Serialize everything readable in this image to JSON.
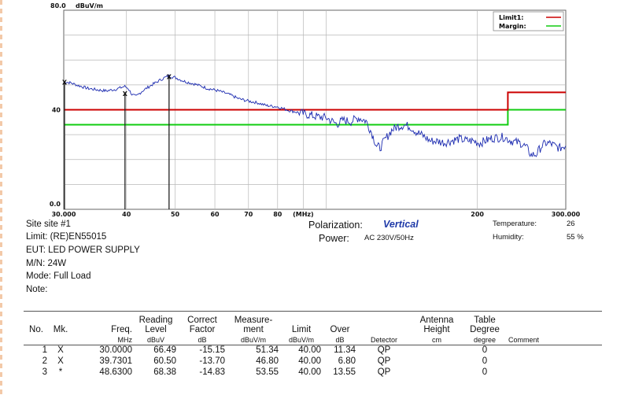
{
  "chart_data": {
    "type": "line",
    "y_top_label": "80.0",
    "y_unit_label": "dBuV/m",
    "y_tick_labels": [
      "40",
      "0.0"
    ],
    "ylim": [
      0,
      80
    ],
    "xlim": [
      30,
      300
    ],
    "x_scale": "log",
    "x_tick_labels": [
      {
        "v": 30,
        "t": "30.000"
      },
      {
        "v": 40,
        "t": "40"
      },
      {
        "v": 50,
        "t": "50"
      },
      {
        "v": 60,
        "t": "60"
      },
      {
        "v": 70,
        "t": "70"
      },
      {
        "v": 80,
        "t": "80"
      },
      {
        "v": 90,
        "t": "(MHz)"
      },
      {
        "v": 200,
        "t": "200"
      },
      {
        "v": 300,
        "t": "300.000"
      }
    ],
    "legend": {
      "placement": "top-right",
      "items": [
        {
          "label": "Limit1:",
          "color": "#cc0000"
        },
        {
          "label": "Margin:",
          "color": "#11cc11"
        }
      ]
    },
    "limit_line": {
      "color": "#cc0000",
      "points": [
        [
          30,
          40
        ],
        [
          230,
          40
        ],
        [
          230,
          47
        ],
        [
          300,
          47
        ]
      ]
    },
    "margin_line": {
      "color": "#11cc11",
      "points": [
        [
          30,
          34
        ],
        [
          230,
          34
        ],
        [
          230,
          40
        ],
        [
          300,
          40
        ]
      ]
    },
    "trace": {
      "color": "#1c2bb0",
      "points": [
        [
          30,
          51.3
        ],
        [
          31,
          50.8
        ],
        [
          32,
          49.8
        ],
        [
          33.5,
          48.6
        ],
        [
          35,
          48
        ],
        [
          36.5,
          47.6
        ],
        [
          38,
          48.2
        ],
        [
          39,
          48.9
        ],
        [
          39.7,
          49.4
        ],
        [
          40.3,
          48.6
        ],
        [
          41,
          46.2
        ],
        [
          41.8,
          45.3
        ],
        [
          43,
          47.5
        ],
        [
          44.5,
          49.5
        ],
        [
          46,
          51.2
        ],
        [
          47.5,
          52.8
        ],
        [
          48.6,
          53.6
        ],
        [
          50,
          53
        ],
        [
          52,
          51.5
        ],
        [
          55,
          50.2
        ],
        [
          58,
          48.6
        ],
        [
          61,
          47.6
        ],
        [
          64,
          46.2
        ],
        [
          67,
          44.4
        ],
        [
          70,
          43.5
        ],
        [
          73,
          42.8
        ],
        [
          76,
          41.7
        ],
        [
          80,
          41.2
        ],
        [
          84,
          39.8
        ],
        [
          88,
          38.9
        ],
        [
          92,
          38
        ],
        [
          96,
          37.2
        ],
        [
          100,
          36.8
        ],
        [
          105,
          34.2
        ],
        [
          108,
          35.8
        ],
        [
          112,
          35.3
        ],
        [
          116,
          36.8
        ],
        [
          120,
          35.5
        ],
        [
          123,
          31
        ],
        [
          126,
          25.5
        ],
        [
          128,
          24.7
        ],
        [
          131,
          28
        ],
        [
          135,
          31.8
        ],
        [
          139,
          33.4
        ],
        [
          143,
          33.8
        ],
        [
          147,
          33.2
        ],
        [
          151,
          31.2
        ],
        [
          156,
          29.5
        ],
        [
          161,
          27.5
        ],
        [
          166,
          27.4
        ],
        [
          172,
          26.8
        ],
        [
          178,
          27.6
        ],
        [
          184,
          28.3
        ],
        [
          190,
          27.6
        ],
        [
          196,
          27.5
        ],
        [
          202,
          26.6
        ],
        [
          208,
          27.6
        ],
        [
          214,
          28.6
        ],
        [
          220,
          28.8
        ],
        [
          226,
          29
        ],
        [
          232,
          27.8
        ],
        [
          238,
          27
        ],
        [
          244,
          26.6
        ],
        [
          250,
          25
        ],
        [
          256,
          21.8
        ],
        [
          262,
          22.1
        ],
        [
          268,
          25.2
        ],
        [
          274,
          26.6
        ],
        [
          280,
          26.4
        ],
        [
          286,
          25.3
        ],
        [
          292,
          24.6
        ],
        [
          298,
          25.5
        ],
        [
          300,
          25.5
        ]
      ]
    },
    "markers": [
      {
        "freq": 30.0,
        "level": 51.34,
        "symbol": "X"
      },
      {
        "freq": 39.7301,
        "level": 46.8,
        "symbol": "X"
      },
      {
        "freq": 48.63,
        "level": 53.55,
        "symbol": "X"
      }
    ]
  },
  "info": {
    "site": "Site  site #1",
    "limit": "Limit:  (RE)EN55015",
    "eut": "EUT:  LED POWER SUPPLY",
    "mn": "M/N:  24W",
    "mode": "Mode: Full Load",
    "note": "Note:",
    "polarization_label": "Polarization:",
    "polarization_value": "Vertical",
    "power_label": "Power:",
    "power_value": "AC 230V/50Hz",
    "temperature_label": "Temperature:",
    "temperature_value": "26",
    "humidity_label": "Humidity:",
    "humidity_value": "55 %"
  },
  "table": {
    "headers": {
      "no": "No.",
      "mk": "Mk.",
      "freq": "Freq.",
      "reading": "Reading Level",
      "correct": "Correct Factor",
      "measurement": "Measure- ment",
      "limit": "Limit",
      "over": "Over",
      "detector": "",
      "antenna": "Antenna Height",
      "table": "Table Degree",
      "comment": ""
    },
    "units": {
      "freq": "MHz",
      "reading": "dBuV",
      "correct": "dB",
      "measurement": "dBuV/m",
      "limit": "dBuV/m",
      "over": "dB",
      "detector": "Detector",
      "antenna": "cm",
      "table": "degree",
      "comment": "Comment"
    },
    "rows": [
      {
        "no": "1",
        "mk": "X",
        "freq": "30.0000",
        "reading": "66.49",
        "correct": "-15.15",
        "measurement": "51.34",
        "limit": "40.00",
        "over": "11.34",
        "detector": "QP",
        "antenna": "",
        "table": "0",
        "comment": ""
      },
      {
        "no": "2",
        "mk": "X",
        "freq": "39.7301",
        "reading": "60.50",
        "correct": "-13.70",
        "measurement": "46.80",
        "limit": "40.00",
        "over": "6.80",
        "detector": "QP",
        "antenna": "",
        "table": "0",
        "comment": ""
      },
      {
        "no": "3",
        "mk": "*",
        "freq": "48.6300",
        "reading": "68.38",
        "correct": "-14.83",
        "measurement": "53.55",
        "limit": "40.00",
        "over": "13.55",
        "detector": "QP",
        "antenna": "",
        "table": "0",
        "comment": ""
      }
    ]
  }
}
